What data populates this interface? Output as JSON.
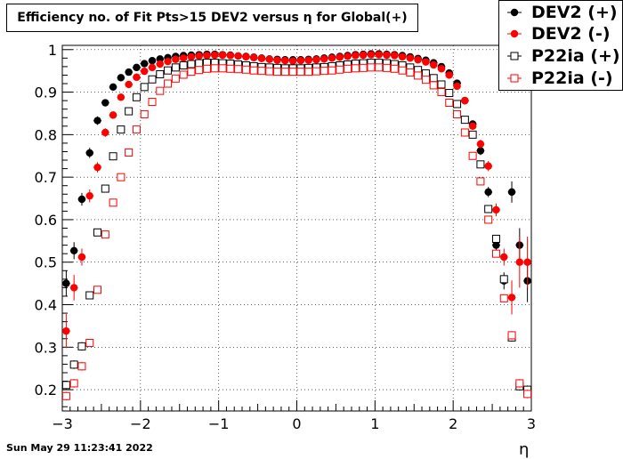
{
  "title": "Efficiency no. of Fit Pts>15 DEV2 versus η for Global(+)",
  "footer_timestamp": "Sun May 29 11:23:41 2022",
  "chart_data": {
    "type": "scatter",
    "title": "Efficiency no. of Fit Pts>15 DEV2 versus η for Global(+)",
    "xlabel": "η",
    "ylabel": "",
    "xlim": [
      -3,
      3
    ],
    "ylim": [
      0.15,
      1.01
    ],
    "xticks": [
      -3,
      -2,
      -1,
      0,
      1,
      2,
      3
    ],
    "yticks": [
      0.2,
      0.3,
      0.4,
      0.5,
      0.6,
      0.7,
      0.8,
      0.9,
      1
    ],
    "grid": true,
    "legend_position": "top-right",
    "x": [
      -2.95,
      -2.85,
      -2.75,
      -2.65,
      -2.55,
      -2.45,
      -2.35,
      -2.25,
      -2.15,
      -2.05,
      -1.95,
      -1.85,
      -1.75,
      -1.65,
      -1.55,
      -1.45,
      -1.35,
      -1.25,
      -1.15,
      -1.05,
      -0.95,
      -0.85,
      -0.75,
      -0.65,
      -0.55,
      -0.45,
      -0.35,
      -0.25,
      -0.15,
      -0.05,
      0.05,
      0.15,
      0.25,
      0.35,
      0.45,
      0.55,
      0.65,
      0.75,
      0.85,
      0.95,
      1.05,
      1.15,
      1.25,
      1.35,
      1.45,
      1.55,
      1.65,
      1.75,
      1.85,
      1.95,
      2.05,
      2.15,
      2.25,
      2.35,
      2.45,
      2.55,
      2.65,
      2.75,
      2.85,
      2.95
    ],
    "series": [
      {
        "name": "DEV2 (+)",
        "color": "#000000",
        "marker": "filled-circle",
        "values": [
          0.45,
          0.527,
          0.648,
          0.757,
          0.833,
          0.875,
          0.912,
          0.934,
          0.947,
          0.958,
          0.967,
          0.974,
          0.978,
          0.981,
          0.984,
          0.986,
          0.987,
          0.988,
          0.989,
          0.989,
          0.988,
          0.987,
          0.985,
          0.984,
          0.982,
          0.98,
          0.978,
          0.977,
          0.976,
          0.976,
          0.976,
          0.977,
          0.978,
          0.98,
          0.982,
          0.984,
          0.986,
          0.988,
          0.989,
          0.99,
          0.99,
          0.989,
          0.988,
          0.986,
          0.983,
          0.979,
          0.975,
          0.969,
          0.96,
          0.945,
          0.921,
          0.88,
          0.825,
          0.762,
          0.665,
          0.54,
          0.456,
          0.665,
          0.54,
          0.456
        ],
        "errors": [
          0.03,
          0.02,
          0.015,
          0.012,
          0.01,
          0.008,
          0.006,
          0.005,
          0.004,
          0.004,
          0.003,
          0.003,
          0.002,
          0.002,
          0.002,
          0.002,
          0.002,
          0.002,
          0.002,
          0.002,
          0.002,
          0.002,
          0.002,
          0.002,
          0.002,
          0.002,
          0.002,
          0.002,
          0.002,
          0.002,
          0.002,
          0.002,
          0.002,
          0.002,
          0.002,
          0.002,
          0.002,
          0.002,
          0.002,
          0.002,
          0.002,
          0.002,
          0.002,
          0.002,
          0.002,
          0.002,
          0.002,
          0.003,
          0.003,
          0.004,
          0.005,
          0.006,
          0.008,
          0.01,
          0.012,
          0.015,
          0.02,
          0.025,
          0.04,
          0.05
        ]
      },
      {
        "name": "DEV2 (-)",
        "color": "#ff0000",
        "marker": "filled-circle",
        "values": [
          0.338,
          0.44,
          0.512,
          0.656,
          0.723,
          0.805,
          0.846,
          0.888,
          0.918,
          0.935,
          0.949,
          0.958,
          0.966,
          0.972,
          0.977,
          0.98,
          0.983,
          0.985,
          0.986,
          0.987,
          0.987,
          0.986,
          0.985,
          0.983,
          0.981,
          0.979,
          0.977,
          0.975,
          0.974,
          0.973,
          0.974,
          0.975,
          0.976,
          0.978,
          0.98,
          0.982,
          0.984,
          0.986,
          0.987,
          0.988,
          0.988,
          0.987,
          0.986,
          0.983,
          0.98,
          0.976,
          0.971,
          0.964,
          0.955,
          0.94,
          0.914,
          0.88,
          0.82,
          0.778,
          0.726,
          0.623,
          0.512,
          0.417,
          0.5,
          0.5
        ],
        "errors": [
          0.04,
          0.03,
          0.02,
          0.015,
          0.012,
          0.01,
          0.008,
          0.006,
          0.005,
          0.004,
          0.004,
          0.003,
          0.003,
          0.002,
          0.002,
          0.002,
          0.002,
          0.002,
          0.002,
          0.002,
          0.002,
          0.002,
          0.002,
          0.002,
          0.002,
          0.002,
          0.002,
          0.002,
          0.002,
          0.002,
          0.002,
          0.002,
          0.002,
          0.002,
          0.002,
          0.002,
          0.002,
          0.002,
          0.002,
          0.002,
          0.002,
          0.002,
          0.002,
          0.002,
          0.002,
          0.002,
          0.003,
          0.003,
          0.004,
          0.004,
          0.005,
          0.006,
          0.008,
          0.01,
          0.012,
          0.015,
          0.02,
          0.04,
          0.06,
          0.06
        ]
      },
      {
        "name": "P22ia (+)",
        "color": "#000000",
        "marker": "open-square",
        "values": [
          0.211,
          0.259,
          0.302,
          0.422,
          0.57,
          0.673,
          0.749,
          0.812,
          0.855,
          0.888,
          0.912,
          0.93,
          0.942,
          0.951,
          0.958,
          0.963,
          0.966,
          0.968,
          0.969,
          0.969,
          0.968,
          0.967,
          0.965,
          0.963,
          0.961,
          0.959,
          0.958,
          0.957,
          0.956,
          0.956,
          0.956,
          0.957,
          0.958,
          0.959,
          0.961,
          0.963,
          0.965,
          0.967,
          0.968,
          0.969,
          0.969,
          0.968,
          0.966,
          0.963,
          0.958,
          0.952,
          0.944,
          0.933,
          0.918,
          0.898,
          0.872,
          0.835,
          0.8,
          0.73,
          0.625,
          0.555,
          0.46,
          0.323,
          0.208,
          0.2
        ],
        "errors": [
          0.01,
          0.01,
          0.01,
          0.008,
          0.007,
          0.006,
          0.005,
          0.004,
          0.004,
          0.003,
          0.003,
          0.002,
          0.002,
          0.002,
          0.002,
          0.002,
          0.002,
          0.002,
          0.002,
          0.002,
          0.002,
          0.002,
          0.002,
          0.002,
          0.002,
          0.002,
          0.002,
          0.002,
          0.002,
          0.002,
          0.002,
          0.002,
          0.002,
          0.002,
          0.002,
          0.002,
          0.002,
          0.002,
          0.002,
          0.002,
          0.002,
          0.002,
          0.002,
          0.002,
          0.002,
          0.002,
          0.002,
          0.002,
          0.002,
          0.003,
          0.003,
          0.004,
          0.004,
          0.005,
          0.006,
          0.007,
          0.008,
          0.01,
          0.01,
          0.01
        ]
      },
      {
        "name": "P22ia (-)",
        "color": "#ff0000",
        "marker": "open-square",
        "values": [
          0.185,
          0.215,
          0.255,
          0.31,
          0.435,
          0.565,
          0.64,
          0.7,
          0.758,
          0.812,
          0.848,
          0.877,
          0.903,
          0.92,
          0.932,
          0.941,
          0.948,
          0.952,
          0.955,
          0.956,
          0.956,
          0.955,
          0.954,
          0.953,
          0.951,
          0.95,
          0.949,
          0.948,
          0.948,
          0.948,
          0.948,
          0.948,
          0.949,
          0.95,
          0.951,
          0.953,
          0.955,
          0.956,
          0.957,
          0.958,
          0.958,
          0.957,
          0.955,
          0.951,
          0.946,
          0.939,
          0.929,
          0.916,
          0.9,
          0.875,
          0.848,
          0.805,
          0.75,
          0.69,
          0.6,
          0.52,
          0.415,
          0.328,
          0.215,
          0.19
        ],
        "errors": [
          0.01,
          0.01,
          0.01,
          0.008,
          0.007,
          0.006,
          0.005,
          0.004,
          0.004,
          0.003,
          0.003,
          0.002,
          0.002,
          0.002,
          0.002,
          0.002,
          0.002,
          0.002,
          0.002,
          0.002,
          0.002,
          0.002,
          0.002,
          0.002,
          0.002,
          0.002,
          0.002,
          0.002,
          0.002,
          0.002,
          0.002,
          0.002,
          0.002,
          0.002,
          0.002,
          0.002,
          0.002,
          0.002,
          0.002,
          0.002,
          0.002,
          0.002,
          0.002,
          0.002,
          0.002,
          0.002,
          0.002,
          0.002,
          0.002,
          0.003,
          0.003,
          0.004,
          0.004,
          0.005,
          0.006,
          0.007,
          0.008,
          0.01,
          0.01,
          0.01
        ]
      }
    ]
  }
}
